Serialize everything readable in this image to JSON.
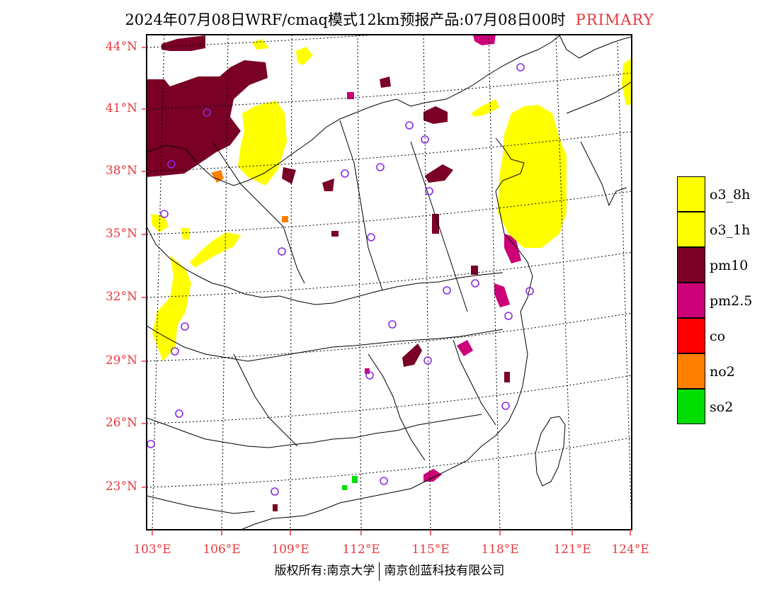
{
  "title": {
    "main": "2024年07月08日WRF/cmaq模式12km预报产品:07月08日00时",
    "tag": "PRIMARY",
    "tag_color": "#e8383d"
  },
  "axes": {
    "lat_labels": [
      "44°N",
      "41°N",
      "38°N",
      "35°N",
      "32°N",
      "29°N",
      "26°N",
      "23°N"
    ],
    "lon_labels": [
      "103°E",
      "106°E",
      "109°E",
      "112°E",
      "115°E",
      "118°E",
      "121°E",
      "124°E"
    ],
    "label_color": "#e8383d"
  },
  "legend": [
    {
      "label": "o3_8h",
      "color": "#ffff00"
    },
    {
      "label": "o3_1h",
      "color": "#ffff00"
    },
    {
      "label": "pm10",
      "color": "#7a0026"
    },
    {
      "label": "pm2.5",
      "color": "#cc0077"
    },
    {
      "label": "co",
      "color": "#ff0000"
    },
    {
      "label": "no2",
      "color": "#ff7f00"
    },
    {
      "label": "so2",
      "color": "#00dd00"
    }
  ],
  "station_marker_color": "#8a2be2",
  "footer": {
    "left": "版权所有:南京大学",
    "right": "南京创蓝科技有限公司"
  }
}
